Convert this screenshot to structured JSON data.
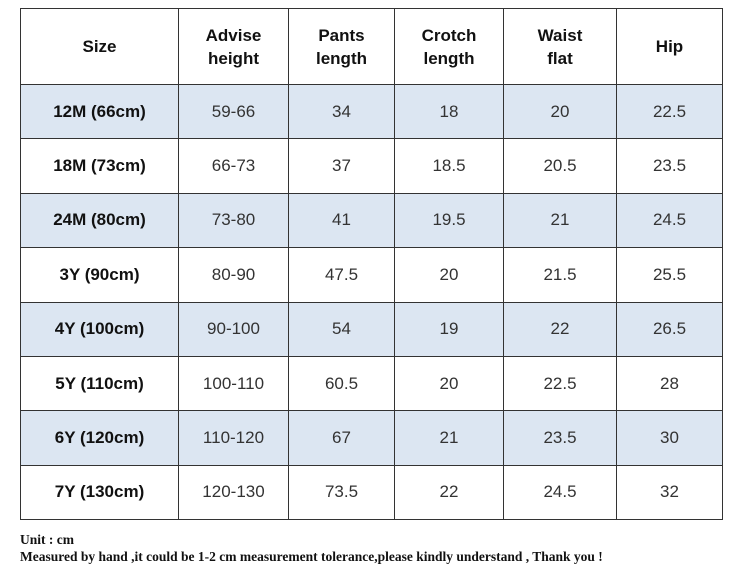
{
  "table": {
    "header": [
      "Size",
      "Advise\nheight",
      "Pants\nlength",
      "Crotch\nlength",
      "Waist\nflat",
      "Hip"
    ],
    "rows": [
      [
        "12M (66cm)",
        "59-66",
        "34",
        "18",
        "20",
        "22.5"
      ],
      [
        "18M (73cm)",
        "66-73",
        "37",
        "18.5",
        "20.5",
        "23.5"
      ],
      [
        "24M (80cm)",
        "73-80",
        "41",
        "19.5",
        "21",
        "24.5"
      ],
      [
        "3Y (90cm)",
        "80-90",
        "47.5",
        "20",
        "21.5",
        "25.5"
      ],
      [
        "4Y (100cm)",
        "90-100",
        "54",
        "19",
        "22",
        "26.5"
      ],
      [
        "5Y (110cm)",
        "100-110",
        "60.5",
        "20",
        "22.5",
        "28"
      ],
      [
        "6Y (120cm)",
        "110-120",
        "67",
        "21",
        "23.5",
        "30"
      ],
      [
        "7Y (130cm)",
        "120-130",
        "73.5",
        "22",
        "24.5",
        "32"
      ]
    ]
  },
  "notes": [
    "Unit : cm",
    "Measured by hand ,it could be 1-2 cm measurement tolerance,please kindly understand , Thank you !"
  ]
}
